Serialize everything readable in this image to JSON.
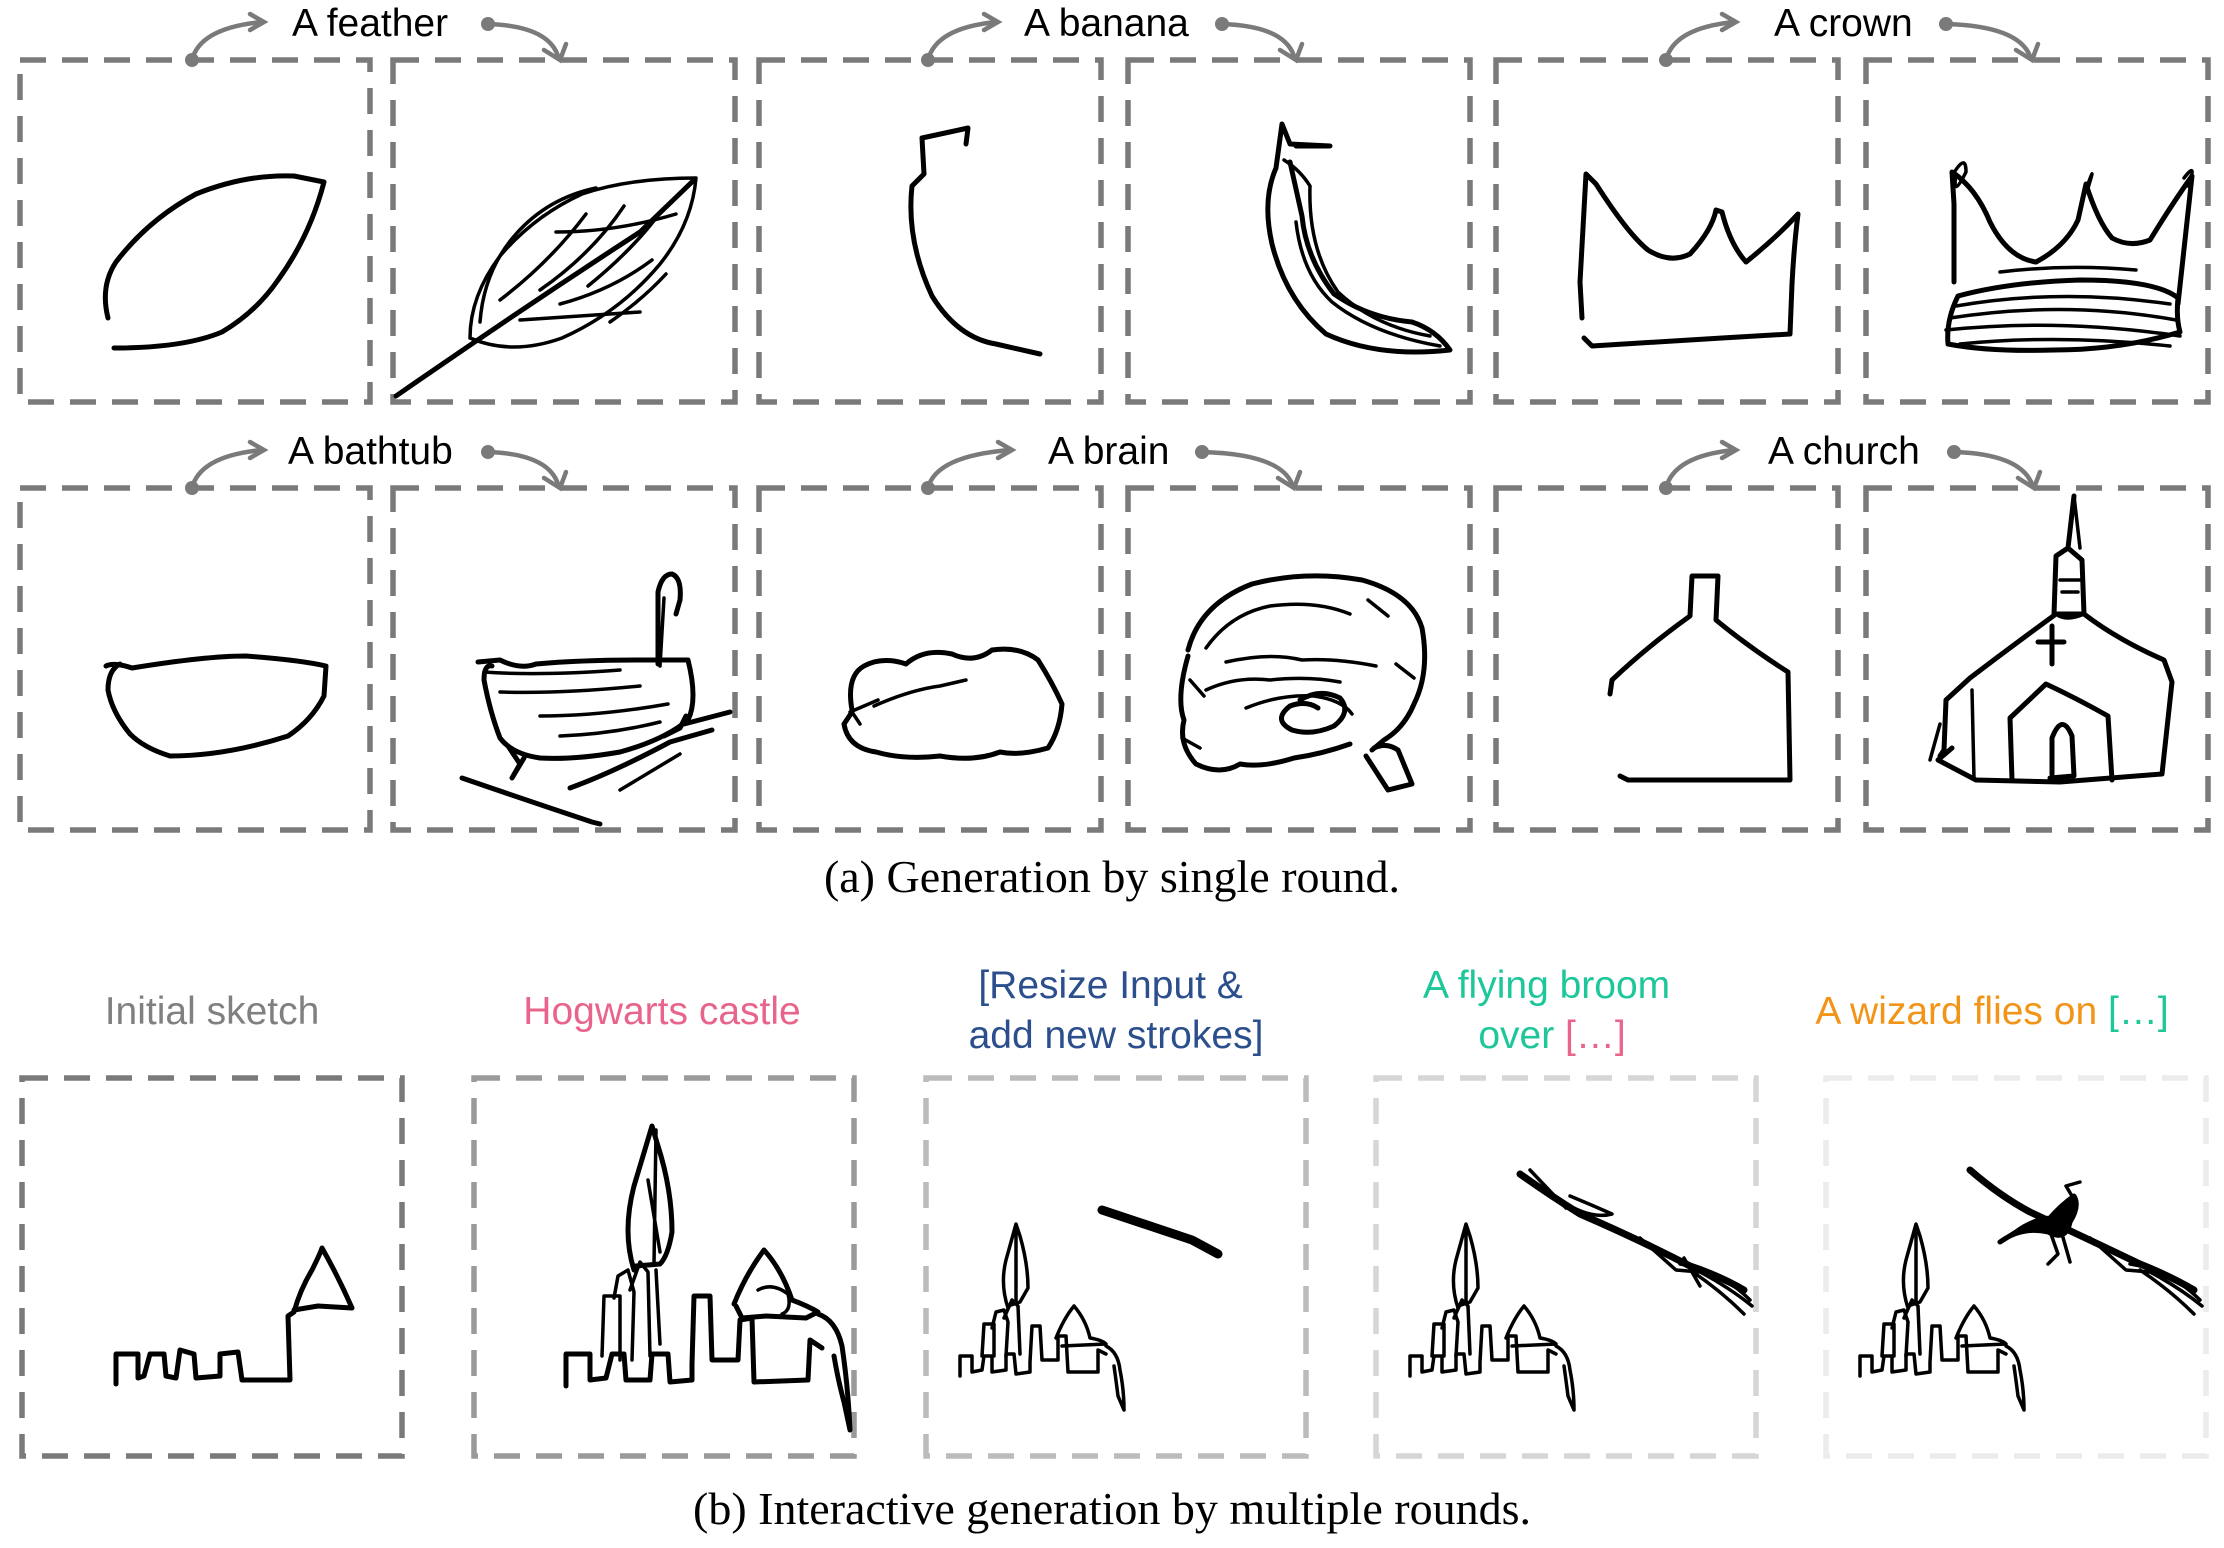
{
  "part_a": {
    "caption": "(a) Generation by single round.",
    "prompts": [
      "A feather",
      "A banana",
      "A crown",
      "A bathtub",
      "A brain",
      "A church"
    ]
  },
  "part_b": {
    "caption": "(b) Interactive generation by multiple rounds.",
    "rounds": [
      {
        "lines": [
          "Initial sketch"
        ],
        "color": "#808080"
      },
      {
        "lines": [
          "Hogwarts castle"
        ],
        "color": "#e8648a"
      },
      {
        "lines": [
          "[Resize Input &",
          "add new strokes]"
        ],
        "color": "#2b4e8c"
      },
      {
        "lines": [
          "A flying broom",
          "over "
        ],
        "ref": "[…]",
        "color": "#1dc79a",
        "ref_color": "#e8648a"
      },
      {
        "lines": [
          "A wizard flies on "
        ],
        "ref": "[…]",
        "color": "#f29418",
        "ref_color": "#1dc79a"
      }
    ],
    "box_colors": [
      "#7a7a7a",
      "#9a9a9a",
      "#bcbcbc",
      "#d6d6d6",
      "#ececec"
    ]
  },
  "colors": {
    "arrow": "#7a7a7a",
    "box_a": "#7a7a7a"
  }
}
